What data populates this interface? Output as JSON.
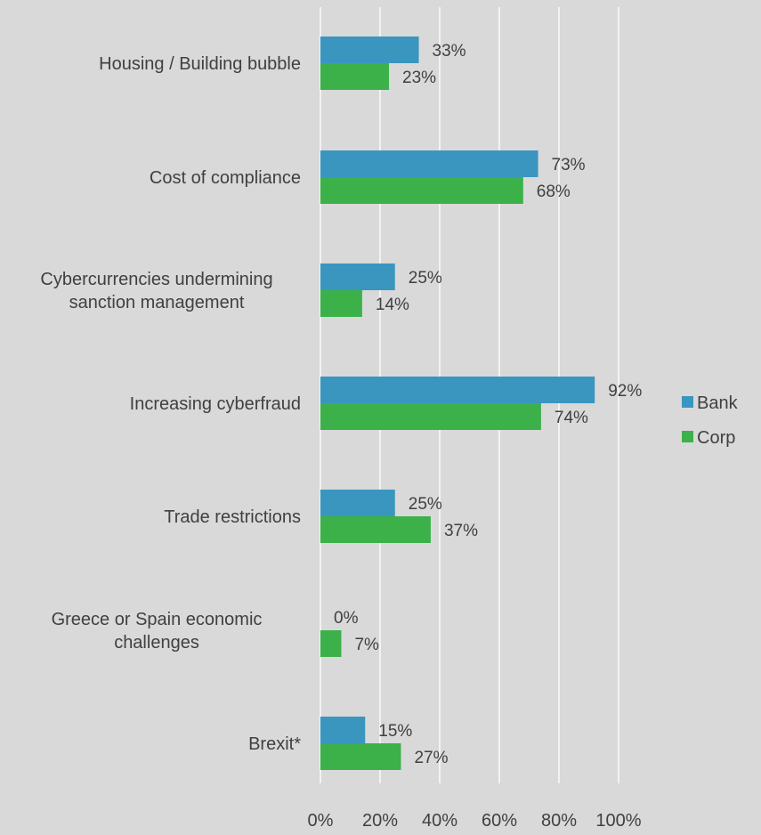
{
  "chart_data": {
    "type": "bar",
    "orientation": "horizontal",
    "categories": [
      "Housing / Building bubble",
      "Cost of compliance",
      "Cybercurrencies undermining sanction management",
      "Increasing cyberfraud",
      "Trade restrictions",
      "Greece or Spain economic challenges",
      "Brexit*"
    ],
    "category_lines": [
      [
        "Housing / Building bubble"
      ],
      [
        "Cost of compliance"
      ],
      [
        "Cybercurrencies undermining",
        "sanction management"
      ],
      [
        "Increasing cyberfraud"
      ],
      [
        "Trade restrictions"
      ],
      [
        "Greece or Spain economic",
        "challenges"
      ],
      [
        "Brexit*"
      ]
    ],
    "series": [
      {
        "name": "Bank",
        "color": "#3a96bf",
        "values": [
          33,
          73,
          25,
          92,
          25,
          0,
          15
        ],
        "labels": [
          "33%",
          "73%",
          "25%",
          "92%",
          "25%",
          "0%",
          "15%"
        ]
      },
      {
        "name": "Corp",
        "color": "#3cb14a",
        "values": [
          23,
          68,
          14,
          74,
          37,
          7,
          27
        ],
        "labels": [
          "23%",
          "68%",
          "14%",
          "74%",
          "37%",
          "7%",
          "27%"
        ]
      }
    ],
    "xlim": [
      0,
      100
    ],
    "xticks": [
      0,
      20,
      40,
      60,
      80,
      100
    ],
    "xtick_labels": [
      "0%",
      "20%",
      "40%",
      "60%",
      "80%",
      "100%"
    ],
    "grid": true,
    "legend_position": "right",
    "title": "",
    "xlabel": "",
    "ylabel": ""
  }
}
